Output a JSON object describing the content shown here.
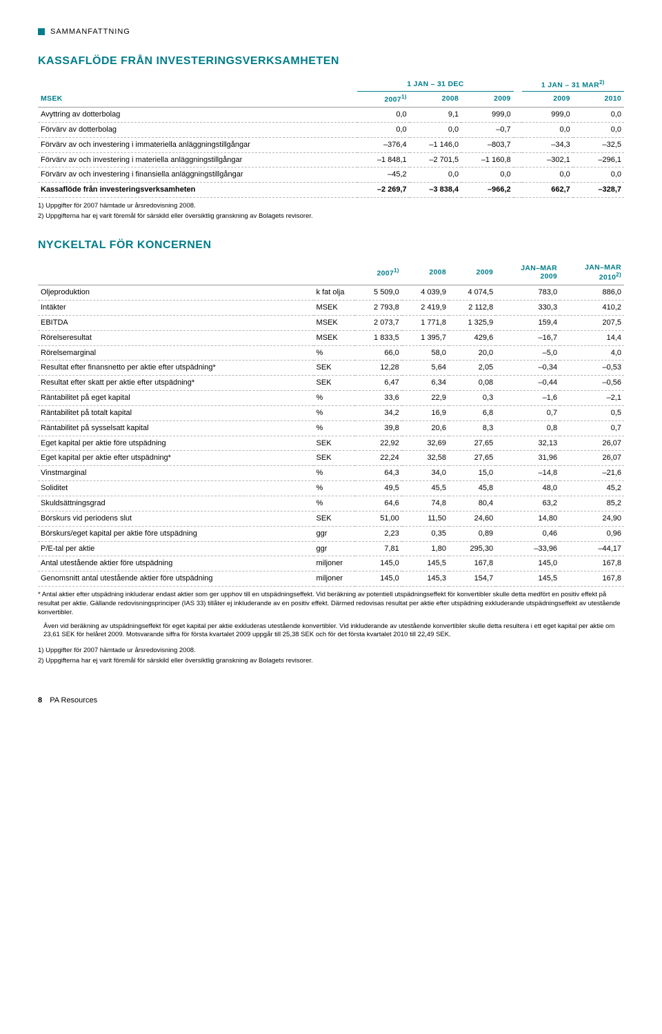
{
  "tag": "SAMMANFATTNING",
  "section1": {
    "title": "KASSAFLÖDE FRÅN INVESTERINGSVERKSAMHETEN",
    "period_left": "1 JAN – 31 DEC",
    "period_right": "1 JAN – 31 MAR",
    "msek": "MSEK",
    "cols": [
      "2007",
      "2008",
      "2009",
      "2009",
      "2010"
    ],
    "sup1": "1)",
    "sup2": "2)",
    "rows": [
      {
        "label": "Avyttring av dotterbolag",
        "v": [
          "0,0",
          "9,1",
          "999,0",
          "999,0",
          "0,0"
        ]
      },
      {
        "label": "Förvärv av dotterbolag",
        "v": [
          "0,0",
          "0,0",
          "–0,7",
          "0,0",
          "0,0"
        ]
      },
      {
        "label": "Förvärv av och investering i immateriella anläggningstillgångar",
        "v": [
          "–376,4",
          "–1 146,0",
          "–803,7",
          "–34,3",
          "–32,5"
        ]
      },
      {
        "label": "Förvärv av och investering i materiella anläggningstillgångar",
        "v": [
          "–1 848,1",
          "–2 701,5",
          "–1 160,8",
          "–302,1",
          "–296,1"
        ]
      },
      {
        "label": "Förvärv av och investering i finansiella anläggningstillgångar",
        "v": [
          "–45,2",
          "0,0",
          "0,0",
          "0,0",
          "0,0"
        ]
      }
    ],
    "total": {
      "label": "Kassaflöde från investeringsverksamheten",
      "v": [
        "–2 269,7",
        "–3 838,4",
        "–966,2",
        "662,7",
        "–328,7"
      ]
    },
    "fn1": "1) Uppgifter för 2007 hämtade ur årsredovisning 2008.",
    "fn2": "2) Uppgifterna har ej varit föremål för särskild eller översiktlig granskning av Bolagets revisorer."
  },
  "section2": {
    "title": "NYCKELTAL FÖR KONCERNEN",
    "head_cols": [
      "2007",
      "2008",
      "2009",
      "JAN–MAR\n2009",
      "JAN–MAR\n2010"
    ],
    "sup1": "1)",
    "sup2": "2)",
    "rows": [
      {
        "label": "Oljeproduktion",
        "unit": "k fat olja",
        "v": [
          "5 509,0",
          "4 039,9",
          "4 074,5",
          "783,0",
          "886,0"
        ]
      },
      {
        "label": "Intäkter",
        "unit": "MSEK",
        "v": [
          "2 793,8",
          "2 419,9",
          "2 112,8",
          "330,3",
          "410,2"
        ]
      },
      {
        "label": "EBITDA",
        "unit": "MSEK",
        "v": [
          "2 073,7",
          "1 771,8",
          "1 325,9",
          "159,4",
          "207,5"
        ]
      },
      {
        "label": "Rörelseresultat",
        "unit": "MSEK",
        "v": [
          "1 833,5",
          "1 395,7",
          "429,6",
          "–16,7",
          "14,4"
        ]
      },
      {
        "label": "Rörelsemarginal",
        "unit": "%",
        "v": [
          "66,0",
          "58,0",
          "20,0",
          "–5,0",
          "4,0"
        ]
      },
      {
        "label": "Resultat efter finansnetto per aktie efter utspädning*",
        "unit": "SEK",
        "v": [
          "12,28",
          "5,64",
          "2,05",
          "–0,34",
          "–0,53"
        ]
      },
      {
        "label": "Resultat efter skatt per aktie efter utspädning*",
        "unit": "SEK",
        "v": [
          "6,47",
          "6,34",
          "0,08",
          "–0,44",
          "–0,56"
        ]
      },
      {
        "label": "Räntabilitet på eget kapital",
        "unit": "%",
        "v": [
          "33,6",
          "22,9",
          "0,3",
          "–1,6",
          "–2,1"
        ]
      },
      {
        "label": "Räntabilitet på totalt kapital",
        "unit": "%",
        "v": [
          "34,2",
          "16,9",
          "6,8",
          "0,7",
          "0,5"
        ]
      },
      {
        "label": "Räntabilitet på sysselsatt kapital",
        "unit": "%",
        "v": [
          "39,8",
          "20,6",
          "8,3",
          "0,8",
          "0,7"
        ]
      },
      {
        "label": "Eget kapital per aktie före utspädning",
        "unit": "SEK",
        "v": [
          "22,92",
          "32,69",
          "27,65",
          "32,13",
          "26,07"
        ]
      },
      {
        "label": "Eget kapital per aktie efter utspädning*",
        "unit": "SEK",
        "v": [
          "22,24",
          "32,58",
          "27,65",
          "31,96",
          "26,07"
        ]
      },
      {
        "label": "Vinstmarginal",
        "unit": "%",
        "v": [
          "64,3",
          "34,0",
          "15,0",
          "–14,8",
          "–21,6"
        ]
      },
      {
        "label": "Soliditet",
        "unit": "%",
        "v": [
          "49,5",
          "45,5",
          "45,8",
          "48,0",
          "45,2"
        ]
      },
      {
        "label": "Skuldsättningsgrad",
        "unit": "%",
        "v": [
          "64,6",
          "74,8",
          "80,4",
          "63,2",
          "85,2"
        ]
      },
      {
        "label": "Börskurs vid periodens slut",
        "unit": "SEK",
        "v": [
          "51,00",
          "11,50",
          "24,60",
          "14,80",
          "24,90"
        ]
      },
      {
        "label": "Börskurs/eget kapital per aktie före utspädning",
        "unit": "ggr",
        "v": [
          "2,23",
          "0,35",
          "0,89",
          "0,46",
          "0,96"
        ]
      },
      {
        "label": "P/E-tal per aktie",
        "unit": "ggr",
        "v": [
          "7,81",
          "1,80",
          "295,30",
          "–33,96",
          "–44,17"
        ]
      },
      {
        "label": "Antal utestående aktier före utspädning",
        "unit": "miljoner",
        "v": [
          "145,0",
          "145,5",
          "167,8",
          "145,0",
          "167,8"
        ]
      },
      {
        "label": "Genomsnitt antal utestående aktier före utspädning",
        "unit": "miljoner",
        "v": [
          "145,0",
          "145,3",
          "154,7",
          "145,5",
          "167,8"
        ]
      }
    ],
    "note_star1": "* Antal aktier efter utspädning inkluderar endast aktier som ger upphov till en utspädningseffekt. Vid beräkning av potentiell utspädningseffekt för konvertibler skulle detta medfört en positiv effekt på resultat per aktie. Gällande redovisningsprinciper (IAS 33) tillåter ej inkluderande av en positiv effekt. Därmed redovisas resultat per aktie efter utspädning exkluderande utspädningseffekt av utestående konvertibler.",
    "note_star2": "Även vid beräkning av utspädningseffekt för eget kapital per aktie exkluderas utestående konvertibler. Vid inkluderande av utestående konvertibler skulle detta resultera i ett eget kapital per aktie om 23,61 SEK för helåret 2009. Motsvarande siffra för första kvartalet 2009 uppgår till 25,38 SEK och för det första kvartalet 2010 till 22,49 SEK.",
    "fn1": "1) Uppgifter för 2007 hämtade ur årsredovisning 2008.",
    "fn2": "2) Uppgifterna har ej varit föremål för särskild eller översiktlig granskning av Bolagets revisorer."
  },
  "footer": {
    "page": "8",
    "brand": "PA Resources"
  }
}
